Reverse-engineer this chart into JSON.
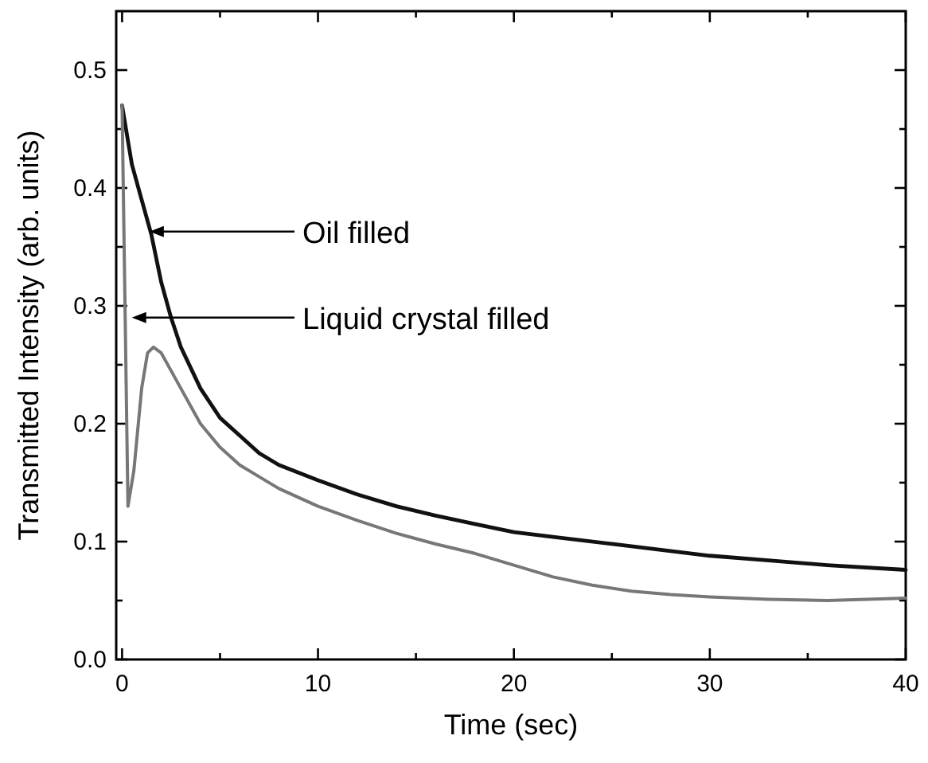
{
  "chart_data": {
    "type": "line",
    "xlabel": "Time (sec)",
    "ylabel": "Transmitted Intensity (arb. units)",
    "xlim": [
      -0.3,
      40
    ],
    "ylim": [
      0,
      0.55
    ],
    "xticks": [
      0,
      {
        "value": 5,
        "label": null
      },
      10,
      {
        "value": 15,
        "label": null
      },
      20,
      {
        "value": 25,
        "label": null
      },
      30,
      {
        "value": 35,
        "label": null
      },
      40
    ],
    "yticks": [
      "0.0",
      {
        "value": 0.05,
        "label": null
      },
      0.1,
      {
        "value": 0.15,
        "label": null
      },
      0.2,
      {
        "value": 0.25,
        "label": null
      },
      0.3,
      {
        "value": 0.35,
        "label": null
      },
      0.4,
      {
        "value": 0.45,
        "label": null
      },
      0.5
    ],
    "series": [
      {
        "color": "#111111",
        "x": [
          0,
          0.5,
          1,
          1.5,
          2,
          2.5,
          3,
          4,
          5,
          6,
          7,
          8,
          10,
          12,
          14,
          16,
          18,
          20,
          22,
          25,
          28,
          30,
          33,
          36,
          40
        ],
        "values": [
          0.47,
          0.42,
          0.39,
          0.36,
          0.32,
          0.29,
          0.265,
          0.23,
          0.205,
          0.19,
          0.175,
          0.165,
          0.152,
          0.14,
          0.13,
          0.122,
          0.115,
          0.108,
          0.104,
          0.098,
          0.092,
          0.088,
          0.084,
          0.08,
          0.076
        ]
      },
      {
        "color": "#777777",
        "x": [
          0,
          0.15,
          0.3,
          0.6,
          1,
          1.3,
          1.6,
          2,
          2.5,
          3,
          4,
          5,
          6,
          7,
          8,
          10,
          12,
          14,
          16,
          18,
          20,
          22,
          24,
          26,
          28,
          30,
          33,
          36,
          40
        ],
        "values": [
          0.47,
          0.3,
          0.13,
          0.16,
          0.23,
          0.26,
          0.265,
          0.26,
          0.245,
          0.23,
          0.2,
          0.18,
          0.165,
          0.155,
          0.145,
          0.13,
          0.118,
          0.107,
          0.098,
          0.09,
          0.08,
          0.07,
          0.063,
          0.058,
          0.055,
          0.053,
          0.051,
          0.05,
          0.052
        ]
      }
    ],
    "annotations": [
      {
        "text": "Oil filled",
        "x": 1.4,
        "y": 0.363
      },
      {
        "text": "Liquid crystal filled",
        "x": 0.5,
        "y": 0.29
      }
    ]
  }
}
